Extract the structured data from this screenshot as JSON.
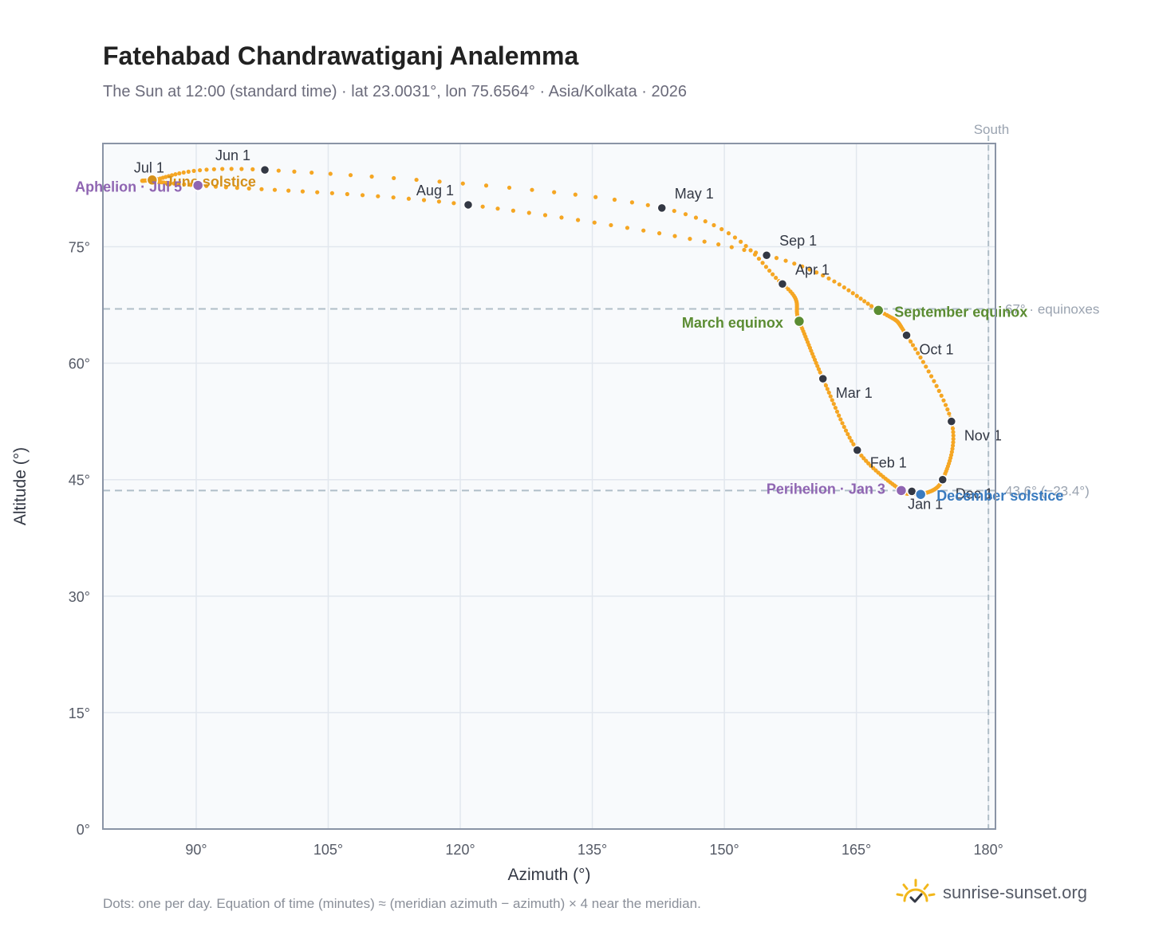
{
  "title": "Fatehabad Chandrawatiganj Analemma",
  "subtitle": "The Sun at 12:00 (standard time) · lat 23.0031°, lon 75.6564° · Asia/Kolkata · 2026",
  "footnote": "Dots: one per day. Equation of time (minutes) ≈ (meridian azimuth − azimuth) × 4 near the meridian.",
  "brand": {
    "text": "sunrise-sunset.org",
    "icon": "sunrise-check-icon"
  },
  "colors": {
    "path": "#f5a623",
    "month_marker": "#333844",
    "equinox": "#5b8c32",
    "june_solstice": "#d4901a",
    "december_solstice": "#3a7bbf",
    "aphelion_perihelion": "#8f65b2",
    "reference_line": "#b0bec8",
    "plot_background": "#f8fafc",
    "grid": "#e2e7ee",
    "axis_frame": "#8a94a6"
  },
  "chart_data": {
    "type": "scatter",
    "xlabel": "Azimuth (°)",
    "ylabel": "Altitude (°)",
    "xlim": [
      79.4,
      180.8
    ],
    "ylim": [
      0,
      88.3
    ],
    "x_ticks": [
      90,
      105,
      120,
      135,
      150,
      165,
      180
    ],
    "y_ticks": [
      0,
      15,
      30,
      45,
      60,
      75
    ],
    "x_tick_labels": [
      "90°",
      "105°",
      "120°",
      "135°",
      "150°",
      "165°",
      "180°"
    ],
    "y_tick_labels": [
      "0°",
      "15°",
      "30°",
      "45°",
      "60°",
      "75°"
    ],
    "grid": true,
    "south_line": {
      "azimuth": 180,
      "label": "South"
    },
    "reference_lines": [
      {
        "altitude": 67.0,
        "label": "67° · equinoxes"
      },
      {
        "altitude": 43.6,
        "label": "43.6° (−23.4°)"
      }
    ],
    "month_markers": [
      {
        "label": "Jan 1",
        "azimuth": 171.3,
        "altitude": 43.5
      },
      {
        "label": "Feb 1",
        "azimuth": 165.1,
        "altitude": 48.8
      },
      {
        "label": "Mar 1",
        "azimuth": 161.2,
        "altitude": 58.0
      },
      {
        "label": "Apr 1",
        "azimuth": 156.6,
        "altitude": 70.2
      },
      {
        "label": "May 1",
        "azimuth": 142.9,
        "altitude": 80.0
      },
      {
        "label": "Jun 1",
        "azimuth": 97.8,
        "altitude": 84.9
      },
      {
        "label": "Jul 1",
        "azimuth": 85.1,
        "altitude": 83.5
      },
      {
        "label": "Aug 1",
        "azimuth": 120.9,
        "altitude": 80.4
      },
      {
        "label": "Sep 1",
        "azimuth": 154.8,
        "altitude": 73.9
      },
      {
        "label": "Oct 1",
        "azimuth": 170.7,
        "altitude": 63.6
      },
      {
        "label": "Nov 1",
        "azimuth": 175.8,
        "altitude": 52.5
      },
      {
        "label": "Dec 1",
        "azimuth": 174.8,
        "altitude": 45.0
      }
    ],
    "events": [
      {
        "label": "March equinox",
        "azimuth": 158.5,
        "altitude": 65.4,
        "kind": "equinox"
      },
      {
        "label": "September equinox",
        "azimuth": 167.5,
        "altitude": 66.8,
        "kind": "equinox"
      },
      {
        "label": "June solstice",
        "azimuth": 85.0,
        "altitude": 83.6,
        "kind": "june_solstice"
      },
      {
        "label": "December solstice",
        "azimuth": 172.3,
        "altitude": 43.1,
        "kind": "december_solstice"
      },
      {
        "label": "Perihelion · Jan 3",
        "azimuth": 170.1,
        "altitude": 43.6,
        "kind": "aphelion_perihelion"
      },
      {
        "label": "Aphelion · Jul 5",
        "azimuth": 90.2,
        "altitude": 82.9,
        "kind": "aphelion_perihelion"
      }
    ]
  }
}
